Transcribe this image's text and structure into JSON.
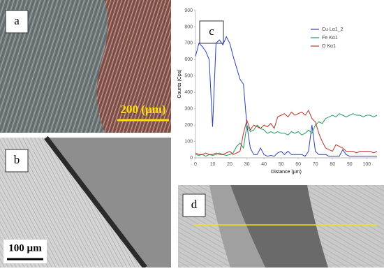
{
  "panel_labels": [
    "a",
    "b",
    "c",
    "d"
  ],
  "scale_bars": [
    "200 (µm)",
    "100 µm"
  ],
  "chart_data": {
    "type": "line",
    "x_label": "Distance (µm)",
    "y_label": "Counts (Cps)",
    "x": [
      0,
      2,
      4,
      6,
      8,
      10,
      12,
      14,
      16,
      18,
      20,
      22,
      24,
      26,
      28,
      30,
      32,
      34,
      36,
      38,
      40,
      42,
      44,
      46,
      48,
      50,
      52,
      54,
      56,
      58,
      60,
      62,
      64,
      66,
      68,
      70,
      72,
      74,
      76,
      78,
      80,
      82,
      84,
      86,
      88,
      90,
      92,
      94,
      96,
      98,
      100,
      102,
      104,
      106
    ],
    "series": [
      {
        "name": "Cu Lα1_2",
        "color": "#2a3fc4",
        "values": [
          620,
          700,
          680,
          650,
          600,
          190,
          700,
          720,
          690,
          740,
          700,
          620,
          550,
          480,
          450,
          200,
          60,
          20,
          20,
          60,
          20,
          10,
          15,
          10,
          30,
          40,
          20,
          40,
          20,
          20,
          20,
          20,
          10,
          40,
          200,
          40,
          20,
          20,
          20,
          10,
          10,
          10,
          10,
          50,
          20,
          10,
          10,
          10,
          10,
          10,
          10,
          10,
          10,
          10
        ]
      },
      {
        "name": "Fe Kα1",
        "color": "#1e9a5a",
        "values": [
          20,
          15,
          20,
          10,
          20,
          15,
          20,
          30,
          20,
          15,
          20,
          30,
          70,
          90,
          60,
          200,
          160,
          170,
          200,
          180,
          170,
          150,
          160,
          150,
          160,
          150,
          150,
          140,
          160,
          150,
          160,
          140,
          150,
          170,
          150,
          200,
          220,
          210,
          240,
          250,
          260,
          250,
          270,
          260,
          250,
          260,
          270,
          260,
          260,
          250,
          260,
          260,
          250,
          260
        ]
      },
      {
        "name": "O Kα1",
        "color": "#c0302a",
        "values": [
          30,
          20,
          20,
          30,
          20,
          20,
          30,
          20,
          20,
          30,
          40,
          20,
          30,
          40,
          150,
          230,
          170,
          200,
          190,
          180,
          200,
          190,
          210,
          180,
          250,
          260,
          270,
          250,
          280,
          260,
          270,
          280,
          260,
          290,
          240,
          220,
          150,
          100,
          60,
          50,
          40,
          80,
          70,
          60,
          40,
          40,
          40,
          30,
          40,
          40,
          40,
          40,
          30,
          40
        ]
      }
    ],
    "xlim": [
      0,
      106
    ],
    "ylim": [
      0,
      900
    ],
    "xticks": [
      0,
      10,
      20,
      30,
      40,
      50,
      60,
      70,
      80,
      90,
      100
    ],
    "yticks": [
      0,
      100,
      200,
      300,
      400,
      500,
      600,
      700,
      800,
      900
    ],
    "legend": "upper right"
  }
}
